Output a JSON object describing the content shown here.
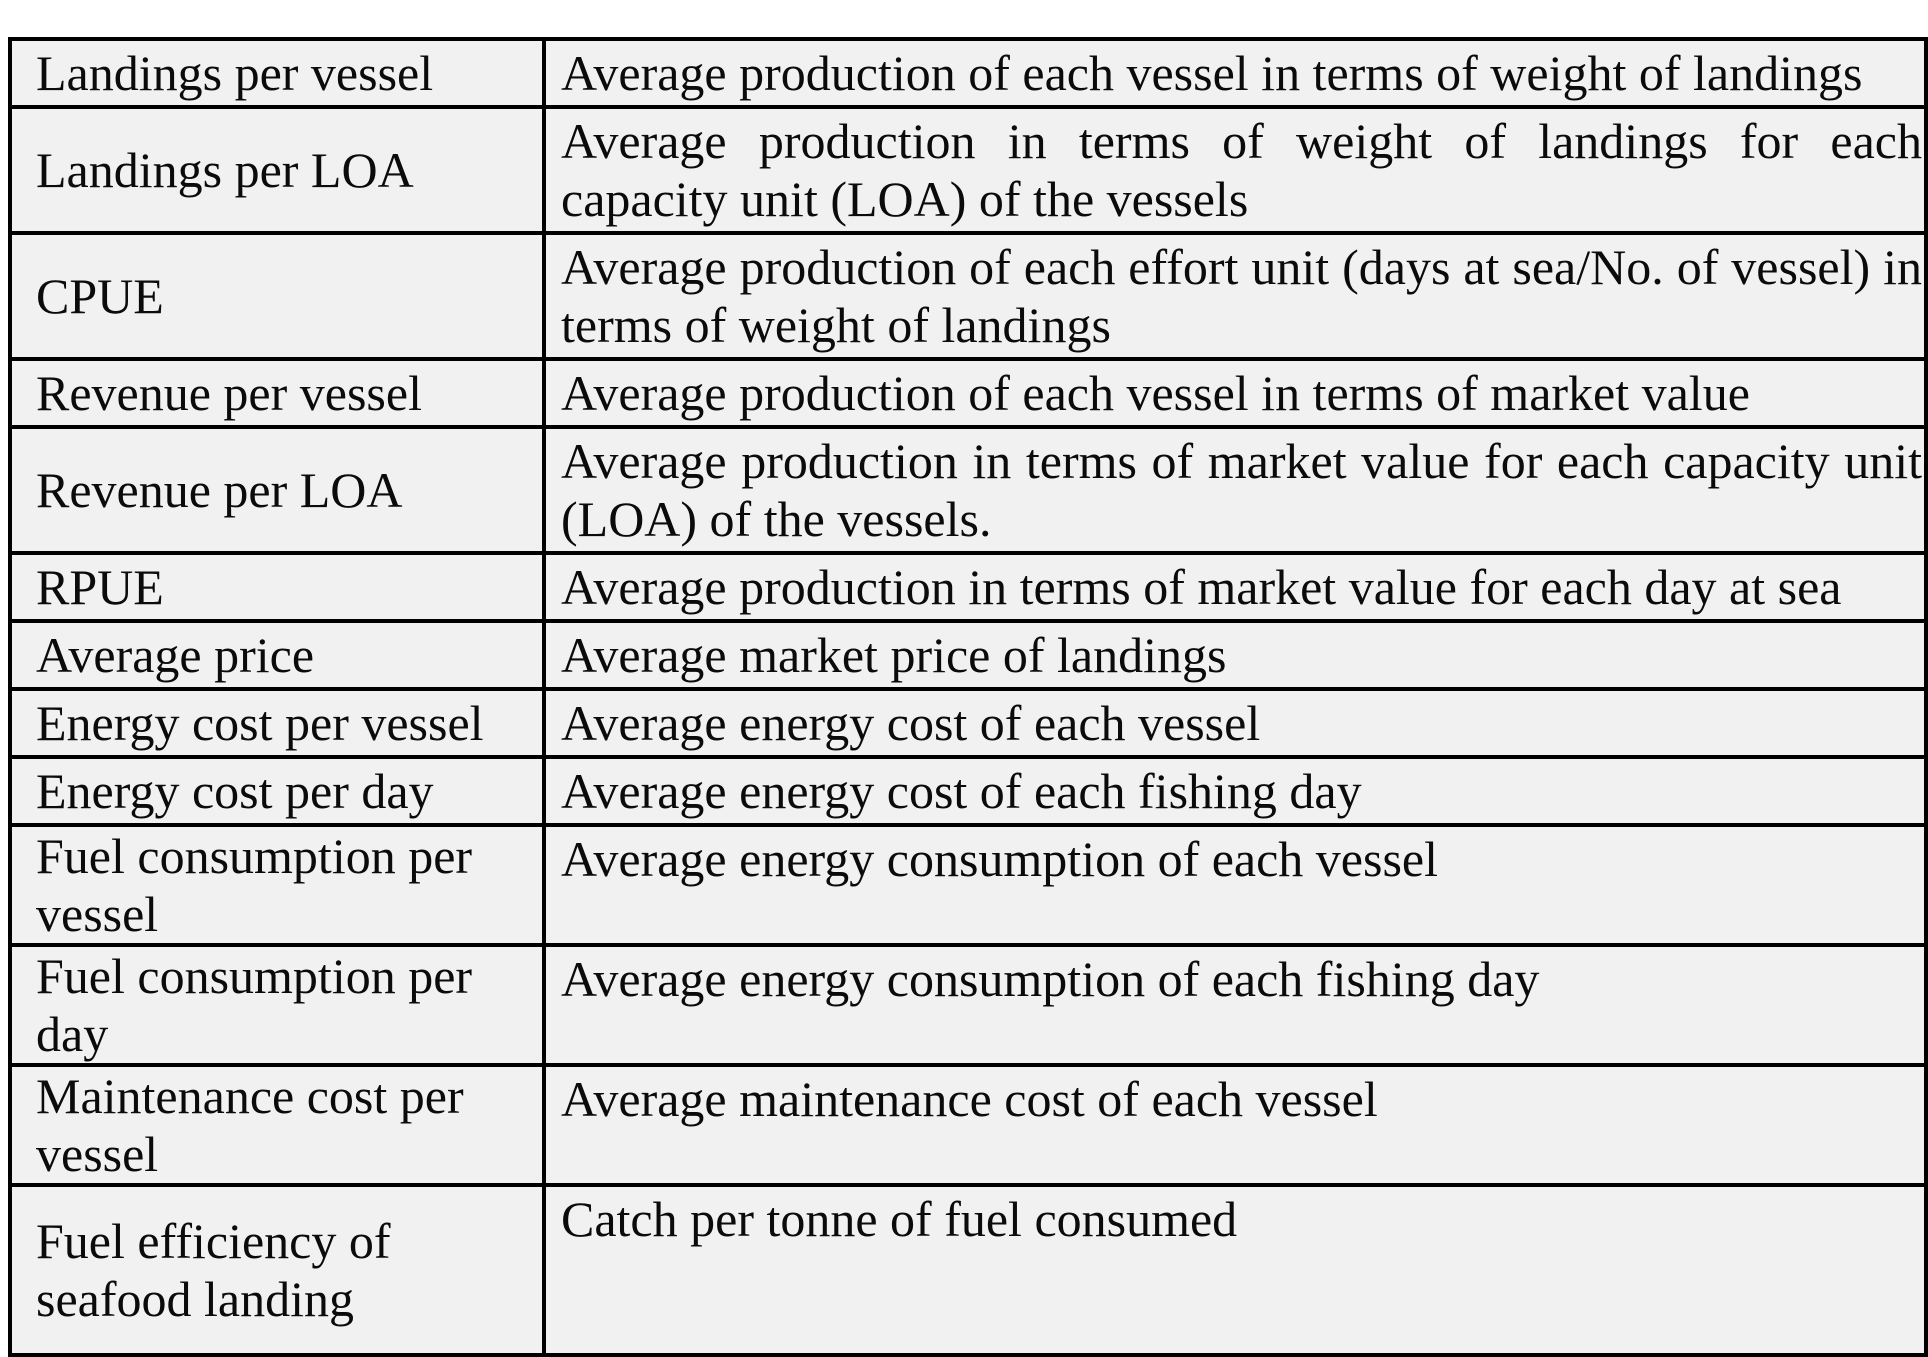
{
  "table": {
    "rows": [
      {
        "term": "Landings per vessel",
        "definition": "Average production of each vessel in terms of weight of landings"
      },
      {
        "term": "Landings per LOA",
        "definition": "Average production in terms of weight of landings for each capacity unit (LOA) of the vessels"
      },
      {
        "term": "CPUE",
        "definition": "Average production of each effort unit (days at sea/No. of vessel) in terms of weight of landings"
      },
      {
        "term": "Revenue per vessel",
        "definition": "Average production of each vessel in terms of market value"
      },
      {
        "term": "Revenue per LOA",
        "definition": "Average production in terms of market value for each capacity unit (LOA) of the vessels."
      },
      {
        "term": "RPUE",
        "definition": "Average production in terms of market value for each day at sea"
      },
      {
        "term": "Average price",
        "definition": "Average market price of landings"
      },
      {
        "term": "Energy cost per vessel",
        "definition": "Average energy cost of each vessel"
      },
      {
        "term": "Energy cost per day",
        "definition": "Average energy cost of each fishing day"
      },
      {
        "term": "Fuel consumption per vessel",
        "definition": "Average energy consumption of each vessel"
      },
      {
        "term": "Fuel consumption per day",
        "definition": "Average energy consumption of each fishing day"
      },
      {
        "term": "Maintenance cost per vessel",
        "definition": "Average maintenance cost of each vessel"
      },
      {
        "term": "Fuel efficiency of seafood landing",
        "definition": "Catch per tonne of fuel consumed"
      }
    ]
  },
  "colors": {
    "cell_background": "#f1f1f1",
    "border": "#000000",
    "text": "#0b0b0b",
    "page_background": "#ffffff"
  }
}
